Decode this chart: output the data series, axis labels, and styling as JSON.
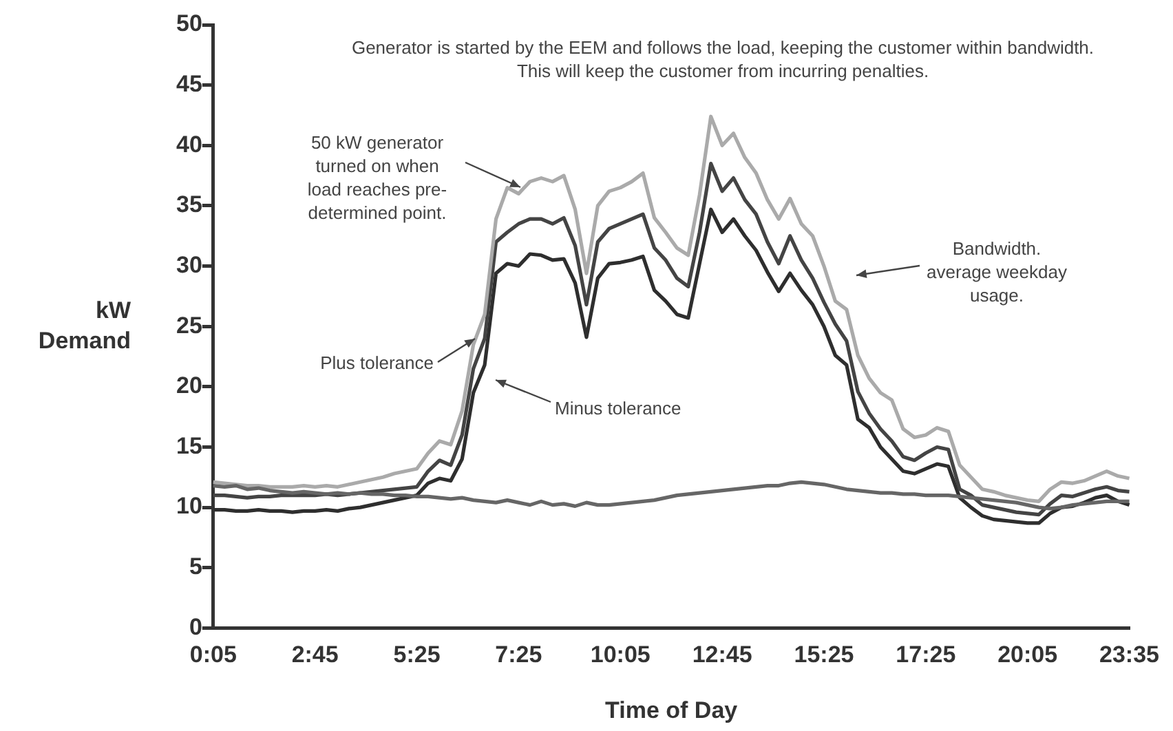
{
  "chart_data": {
    "type": "line",
    "xlabel": "Time of Day",
    "ylabel": "kW Demand",
    "categories": [
      "0:05",
      null,
      null,
      null,
      null,
      null,
      null,
      null,
      null,
      "2:45",
      null,
      null,
      null,
      null,
      null,
      null,
      null,
      null,
      "5:25",
      null,
      null,
      null,
      null,
      null,
      null,
      null,
      null,
      "7:25",
      null,
      null,
      null,
      null,
      null,
      null,
      null,
      null,
      "10:05",
      null,
      null,
      null,
      null,
      null,
      null,
      null,
      null,
      "12:45",
      null,
      null,
      null,
      null,
      null,
      null,
      null,
      null,
      "15:25",
      null,
      null,
      null,
      null,
      null,
      null,
      null,
      null,
      "17:25",
      null,
      null,
      null,
      null,
      null,
      null,
      null,
      null,
      "20:05",
      null,
      null,
      null,
      null,
      null,
      null,
      null,
      null,
      "23:35"
    ],
    "series": [
      {
        "color": "#666666",
        "values": [
          11.8,
          11.7,
          11.8,
          11.5,
          11.6,
          11.4,
          11.3,
          11.2,
          11.3,
          11.2,
          11.1,
          11.2,
          11.1,
          11.2,
          11.1,
          11.1,
          11,
          11,
          10.9,
          10.9,
          10.8,
          10.7,
          10.8,
          10.6,
          10.5,
          10.4,
          10.6,
          10.4,
          10.2,
          10.5,
          10.2,
          10.3,
          10.1,
          10.4,
          10.2,
          10.2,
          10.3,
          10.4,
          10.5,
          10.6,
          10.8,
          11,
          11.1,
          11.2,
          11.3,
          11.4,
          11.5,
          11.6,
          11.7,
          11.8,
          11.8,
          12,
          12.1,
          12,
          11.9,
          11.7,
          11.5,
          11.4,
          11.3,
          11.2,
          11.2,
          11.1,
          11.1,
          11,
          11,
          11,
          10.9,
          10.8,
          10.7,
          10.6,
          10.5,
          10.4,
          10.2,
          10,
          9.9,
          10,
          10.2,
          10.3,
          10.4,
          10.5,
          10.5,
          10.5
        ]
      },
      {
        "color": "#aaaaaa",
        "values": [
          12.1,
          12,
          11.9,
          11.8,
          11.8,
          11.7,
          11.7,
          11.7,
          11.8,
          11.7,
          11.8,
          11.7,
          11.9,
          12.1,
          12.3,
          12.5,
          12.8,
          13,
          13.2,
          14.5,
          15.5,
          15.2,
          18,
          23.5,
          26,
          33.9,
          36.5,
          36,
          37,
          37.3,
          37,
          37.5,
          34.7,
          29.4,
          35,
          36.2,
          36.5,
          37,
          37.7,
          34,
          32.8,
          31.5,
          30.9,
          35.9,
          42.4,
          40,
          41,
          39,
          37.7,
          35.5,
          33.9,
          35.6,
          33.5,
          32.5,
          30,
          27.1,
          26.4,
          22.6,
          20.7,
          19.5,
          18.9,
          16.5,
          15.8,
          16,
          16.6,
          16.3,
          13.5,
          12.5,
          11.5,
          11.3,
          11,
          10.8,
          10.6,
          10.5,
          11.5,
          12.1,
          12,
          12.2,
          12.6,
          13,
          12.6,
          12.4
        ]
      },
      {
        "color": "#444444",
        "values": [
          11,
          11,
          10.9,
          10.8,
          10.9,
          10.9,
          11,
          11,
          11,
          11,
          11.1,
          11,
          11.1,
          11.2,
          11.3,
          11.4,
          11.5,
          11.6,
          11.7,
          13,
          13.9,
          13.5,
          16,
          21.5,
          24,
          32,
          32.8,
          33.5,
          33.9,
          33.9,
          33.5,
          34,
          31.7,
          26.8,
          32,
          33.1,
          33.5,
          33.9,
          34.3,
          31.5,
          30.5,
          29,
          28.3,
          32.8,
          38.5,
          36.2,
          37.3,
          35.5,
          34.3,
          32,
          30.2,
          32.5,
          30.5,
          29,
          27,
          25.2,
          23.8,
          19.6,
          17.8,
          16.5,
          15.5,
          14.2,
          13.9,
          14.5,
          15,
          14.8,
          11.5,
          11,
          10.2,
          10,
          9.8,
          9.6,
          9.5,
          9.4,
          10.3,
          11,
          10.9,
          11.2,
          11.5,
          11.7,
          11.4,
          11.3
        ]
      },
      {
        "color": "#2e2e2e",
        "values": [
          9.8,
          9.8,
          9.7,
          9.7,
          9.8,
          9.7,
          9.7,
          9.6,
          9.7,
          9.7,
          9.8,
          9.7,
          9.9,
          10,
          10.2,
          10.4,
          10.6,
          10.8,
          11,
          12,
          12.4,
          12.2,
          14,
          19.5,
          21.8,
          29.4,
          30.2,
          30,
          31,
          30.9,
          30.5,
          30.6,
          28.6,
          24.1,
          29,
          30.2,
          30.3,
          30.5,
          30.8,
          28,
          27.1,
          26,
          25.7,
          30.2,
          34.7,
          32.8,
          33.9,
          32.5,
          31.3,
          29.5,
          27.9,
          29.4,
          28,
          26.8,
          25,
          22.6,
          21.8,
          17.3,
          16.6,
          15,
          14,
          13,
          12.8,
          13.2,
          13.6,
          13.4,
          10.8,
          10,
          9.3,
          9,
          8.9,
          8.8,
          8.7,
          8.7,
          9.5,
          10,
          10.1,
          10.4,
          10.8,
          11,
          10.5,
          10.2
        ]
      }
    ],
    "ylim": [
      0,
      50
    ],
    "yticks": [
      0,
      5,
      10,
      15,
      20,
      25,
      30,
      35,
      40,
      45,
      50
    ],
    "marker": "none",
    "line_style": "solid",
    "annotations": [
      "Generator is started by the EEM and follows the load, keeping the customer within bandwidth. This will keep the customer from incurring penalties.",
      "50 kW generator turned on when load reaches pre-determined point.",
      "Plus tolerance",
      "Minus tolerance",
      "Bandwidth. average weekday usage."
    ]
  }
}
